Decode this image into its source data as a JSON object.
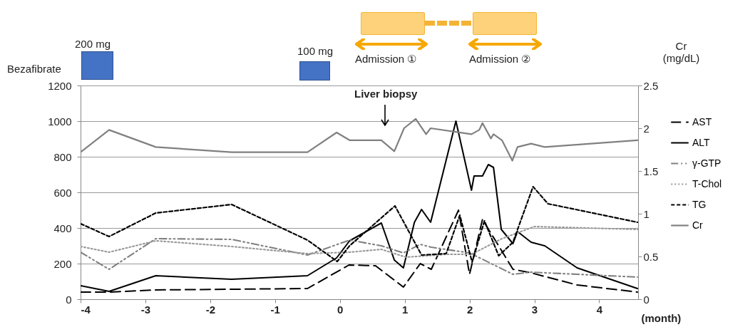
{
  "chart_data": {
    "type": "line",
    "xlabel": "(month)",
    "y2label": "Cr (mg/dL)",
    "xlim": [
      -4,
      4.6
    ],
    "xticks": [
      -4,
      -3,
      -2,
      -1,
      0,
      1,
      2,
      3,
      4
    ],
    "ylim": [
      0,
      1200
    ],
    "yticks": [
      0,
      200,
      400,
      600,
      800,
      1000,
      1200
    ],
    "y2lim": [
      0,
      2.5
    ],
    "y2ticks": [
      0,
      0.5,
      1,
      1.5,
      2,
      2.5
    ],
    "grid": "y",
    "legend": "right",
    "annotations": [
      "Bezafibrate",
      "200 mg",
      "100 mg",
      "Admission ①",
      "Admission ②",
      "Liver biopsy"
    ],
    "series": [
      {
        "name": "AST",
        "color": "#000000",
        "line_style": "dashed",
        "x": [
          -4,
          -3.56,
          -2.84,
          -0.5,
          0.14,
          0.55,
          0.98,
          1.24,
          1.41,
          1.83,
          2.0,
          2.2,
          2.67,
          2.95,
          3.66,
          4.59
        ],
        "values": [
          40,
          40,
          52,
          60,
          192,
          188,
          68,
          200,
          168,
          500,
          140,
          448,
          168,
          148,
          80,
          40
        ]
      },
      {
        "name": "ALT",
        "color": "#000000",
        "line_style": "solid",
        "x": [
          -4,
          -3.56,
          -2.84,
          -1.67,
          -0.5,
          -0.05,
          0.15,
          0.64,
          0.84,
          0.98,
          1.15,
          1.26,
          1.4,
          1.79,
          2.03,
          2.07,
          2.2,
          2.29,
          2.37,
          2.49,
          2.67,
          2.74,
          2.95,
          3.16,
          3.66,
          4.59
        ],
        "values": [
          76,
          44,
          132,
          112,
          132,
          232,
          328,
          428,
          220,
          176,
          432,
          504,
          432,
          1000,
          612,
          692,
          692,
          756,
          740,
          392,
          312,
          380,
          320,
          300,
          176,
          60
        ]
      },
      {
        "name": "γ-GTP",
        "color": "#808080",
        "line_style": "dashed",
        "x": [
          -4,
          -3.56,
          -2.84,
          -1.67,
          -0.5,
          0.15,
          0.64,
          0.98,
          1.24,
          1.41,
          2.0,
          2.67,
          2.95,
          3.66,
          4.59
        ],
        "values": [
          264,
          168,
          340,
          336,
          248,
          332,
          300,
          260,
          308,
          292,
          260,
          140,
          152,
          140,
          124
        ]
      },
      {
        "name": "T-Chol",
        "color": "#999999",
        "line_style": "dotted",
        "x": [
          -4,
          -3.56,
          -2.84,
          -1.67,
          -0.5,
          0.15,
          0.64,
          1.02,
          1.65,
          2.03,
          2.5,
          3.0,
          4.59
        ],
        "values": [
          296,
          264,
          328,
          296,
          256,
          264,
          280,
          236,
          252,
          252,
          340,
          408,
          392
        ]
      },
      {
        "name": "TG",
        "color": "#000000",
        "line_style": "dashed",
        "x": [
          -4,
          -3.56,
          -2.84,
          -1.67,
          -0.5,
          -0.04,
          0.15,
          0.85,
          1.26,
          1.64,
          1.85,
          2.04,
          2.23,
          2.45,
          2.67,
          2.98,
          3.21,
          4.59
        ],
        "values": [
          424,
          352,
          484,
          532,
          332,
          212,
          300,
          524,
          248,
          256,
          472,
          208,
          440,
          244,
          320,
          632,
          536,
          432
        ]
      },
      {
        "name": "Cr",
        "color": "#808080",
        "line_style": "solid",
        "axis": "y2",
        "x": [
          -4,
          -3.56,
          -2.84,
          -1.67,
          -0.5,
          -0.05,
          0.15,
          0.64,
          0.84,
          0.99,
          1.17,
          1.33,
          1.4,
          2.03,
          2.15,
          2.2,
          2.33,
          2.37,
          2.5,
          2.66,
          2.74,
          2.95,
          3.16,
          4.59
        ],
        "values": [
          1.72,
          1.98,
          1.78,
          1.72,
          1.72,
          1.95,
          1.86,
          1.86,
          1.73,
          2.0,
          2.11,
          1.93,
          2.0,
          1.93,
          1.98,
          2.06,
          1.88,
          1.93,
          1.86,
          1.62,
          1.78,
          1.82,
          1.78,
          1.86
        ]
      }
    ]
  }
}
